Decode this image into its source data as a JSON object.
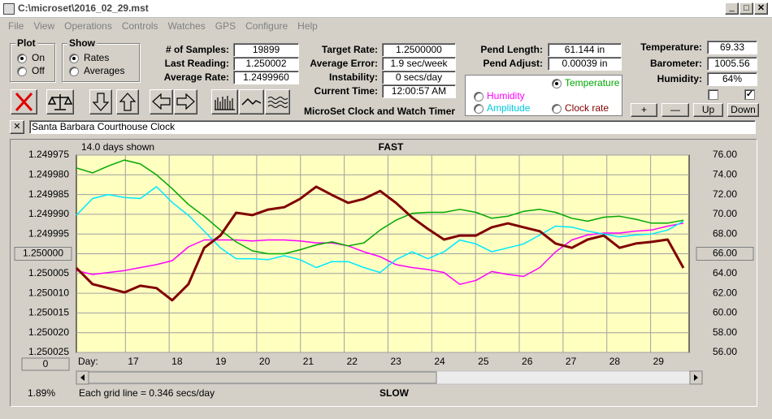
{
  "window": {
    "title": "C:\\microset\\2016_02_29.mst"
  },
  "menu": [
    "File",
    "View",
    "Operations",
    "Controls",
    "Watches",
    "GPS",
    "Configure",
    "Help"
  ],
  "plot_group": {
    "title": "Plot",
    "options": [
      {
        "label": "On",
        "checked": true
      },
      {
        "label": "Off",
        "checked": false
      }
    ]
  },
  "show_group": {
    "title": "Show",
    "options": [
      {
        "label": "Rates",
        "checked": true
      },
      {
        "label": "Averages",
        "checked": false
      }
    ]
  },
  "stats": [
    {
      "label": "# of Samples:",
      "value": "19899"
    },
    {
      "label": "Last Reading:",
      "value": "1.250002"
    },
    {
      "label": "Average Rate:",
      "value": "1.2499960"
    }
  ],
  "rates": [
    {
      "label": "Target Rate:",
      "value": "1.2500000"
    },
    {
      "label": "Average Error:",
      "value": "1.9 sec/week"
    },
    {
      "label": "Instability:",
      "value": "0 secs/day"
    },
    {
      "label": "Current Time:",
      "value": "12:00:57 AM"
    }
  ],
  "pendulum": [
    {
      "label": "Pend Length:",
      "value": "61.144 in"
    },
    {
      "label": "Pend Adjust:",
      "value": "0.00039 in"
    }
  ],
  "environment": [
    {
      "label": "Temperature:",
      "value": "69.33"
    },
    {
      "label": "Barometer:",
      "value": "1005.56"
    },
    {
      "label": "Humidity:",
      "value": "64%"
    }
  ],
  "checkboxes": [
    false,
    true
  ],
  "buttons": [
    "+",
    "—",
    "Up",
    "Down"
  ],
  "app_name": "MicroSet Clock and Watch Timer",
  "clock_name": "Santa Barbara Courthouse Clock",
  "chart_data": {
    "type": "line",
    "days_shown": "14.0 days shown",
    "top_label": "FAST",
    "bottom_label": "SLOW",
    "x_label": "Day:",
    "footnote": "Each grid line = 0.346 secs/day",
    "status": "1.89%",
    "scroll_button": "0",
    "grid": true,
    "x": [
      15.88,
      16.25,
      16.61,
      16.98,
      17.34,
      17.71,
      18.07,
      18.44,
      18.8,
      19.17,
      19.53,
      19.9,
      20.26,
      20.63,
      20.99,
      21.36,
      21.72,
      22.09,
      22.45,
      22.82,
      23.18,
      23.55,
      23.91,
      24.28,
      24.64,
      25.01,
      25.37,
      25.74,
      26.1,
      26.47,
      26.83,
      27.2,
      27.56,
      27.93,
      28.29,
      28.66,
      29.02,
      29.39,
      29.75
    ],
    "xlim": [
      15.88,
      29.88
    ],
    "xticks": [
      17,
      18,
      19,
      20,
      21,
      22,
      23,
      24,
      25,
      26,
      27,
      28,
      29
    ],
    "ylim": [
      1.250025,
      1.249975
    ],
    "yticks": [
      1.249975,
      {
        "value": 1.24998,
        "label": "1.249980"
      },
      1.249985,
      {
        "value": 1.24999,
        "label": "1.249990"
      },
      1.249995,
      {
        "value": 1.25,
        "label": "1.250000"
      },
      1.250005,
      {
        "value": 1.25001,
        "label": "1.250010"
      },
      1.250015,
      {
        "value": 1.25002,
        "label": "1.250020"
      },
      1.250025
    ],
    "y2lim": [
      56,
      76
    ],
    "y2ticks": [
      {
        "value": 76,
        "label": "76.00"
      },
      {
        "value": 74,
        "label": "74.00"
      },
      {
        "value": 72,
        "label": "72.00"
      },
      {
        "value": 70,
        "label": "70.00"
      },
      {
        "value": 68,
        "label": "68.00"
      },
      {
        "value": 66,
        "label": "66.00"
      },
      {
        "value": 64,
        "label": "64.00"
      },
      {
        "value": 62,
        "label": "62.00"
      },
      {
        "value": 60,
        "label": "60.00"
      },
      {
        "value": 58,
        "label": "58.00"
      },
      {
        "value": 56,
        "label": "56.00"
      }
    ],
    "series": [
      {
        "name": "Temperature",
        "color": "#00a800",
        "axis": "y2",
        "checked": true,
        "values": [
          74.7,
          74.2,
          74.9,
          75.5,
          75.1,
          74.0,
          72.6,
          71.0,
          69.8,
          68.4,
          67.2,
          66.3,
          66.0,
          66.0,
          66.4,
          66.9,
          67.2,
          66.8,
          67.1,
          68.4,
          69.4,
          70.1,
          70.2,
          70.2,
          70.5,
          70.2,
          69.6,
          69.8,
          70.3,
          70.5,
          70.2,
          69.6,
          69.3,
          69.7,
          69.8,
          69.5,
          69.1,
          69.1,
          69.4
        ]
      },
      {
        "name": "Humidity",
        "color": "#ff00ff",
        "axis": "y2",
        "checked": false,
        "values": [
          64.3,
          63.9,
          64.1,
          64.3,
          64.6,
          64.9,
          65.3,
          66.7,
          67.4,
          67.4,
          67.4,
          67.3,
          67.4,
          67.4,
          67.3,
          67.1,
          67.1,
          66.8,
          66.2,
          65.7,
          64.9,
          64.6,
          64.4,
          64.1,
          62.9,
          63.3,
          64.2,
          63.9,
          63.7,
          64.6,
          66.2,
          67.4,
          67.9,
          68.1,
          68.1,
          68.3,
          68.4,
          68.8,
          69.1
        ]
      },
      {
        "name": "Amplitude",
        "color": "#00e8ff",
        "axis": "y2",
        "checked": false,
        "values": [
          69.9,
          71.6,
          72.0,
          71.7,
          71.6,
          72.8,
          71.2,
          69.9,
          68.3,
          66.6,
          65.5,
          65.5,
          65.4,
          65.8,
          65.4,
          64.6,
          65.2,
          65.2,
          64.6,
          64.1,
          65.4,
          66.2,
          65.5,
          66.2,
          67.4,
          67.0,
          66.2,
          66.6,
          67.0,
          67.9,
          68.8,
          68.7,
          68.3,
          68.0,
          67.7,
          67.9,
          68.0,
          68.4,
          69.3
        ]
      },
      {
        "name": "Clock rate",
        "color": "#800000",
        "checked": false,
        "values": [
          1.2500036,
          1.2500077,
          1.2500087,
          1.2500098,
          1.2500081,
          1.2500087,
          1.2500118,
          1.2500077,
          1.2499985,
          1.2499954,
          1.2499896,
          1.2499902,
          1.2499888,
          1.2499882,
          1.2499861,
          1.249983,
          1.2499851,
          1.2499871,
          1.2499861,
          1.2499841,
          1.2499871,
          1.2499908,
          1.2499937,
          1.2499964,
          1.2499954,
          1.2499954,
          1.2499933,
          1.2499923,
          1.2499933,
          1.2499943,
          1.2499974,
          1.2499985,
          1.2499964,
          1.2499954,
          1.2499985,
          1.2499974,
          1.249997,
          1.2499964,
          1.2500036
        ]
      }
    ]
  }
}
